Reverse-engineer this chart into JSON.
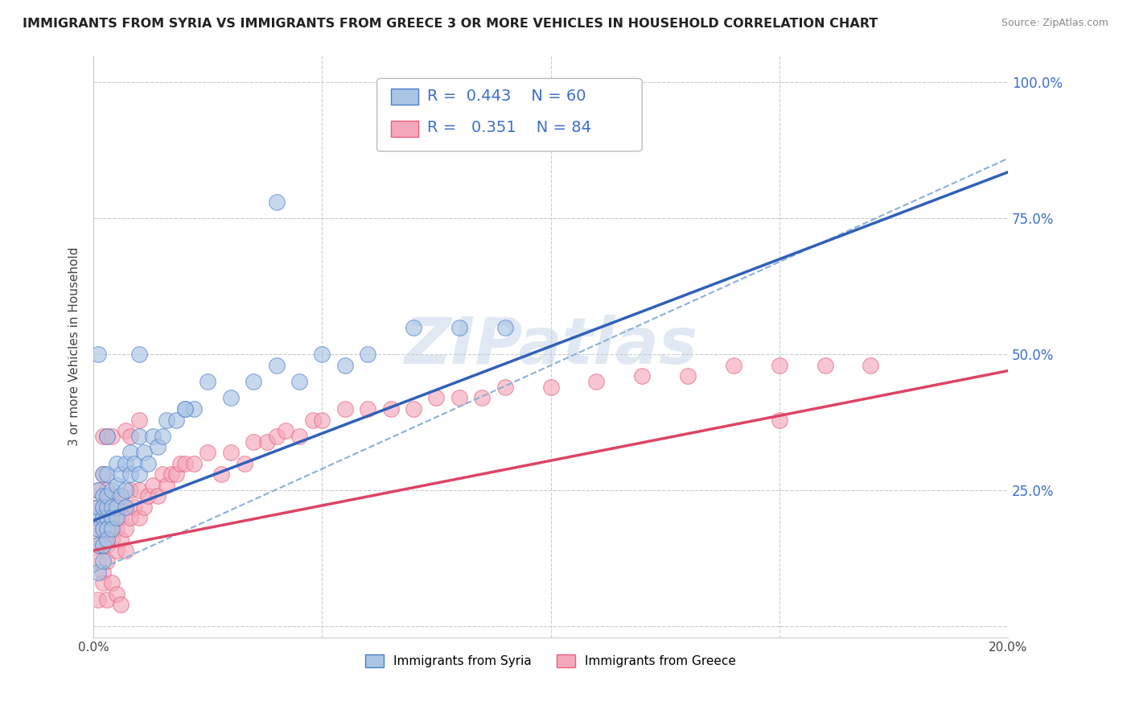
{
  "title": "IMMIGRANTS FROM SYRIA VS IMMIGRANTS FROM GREECE 3 OR MORE VEHICLES IN HOUSEHOLD CORRELATION CHART",
  "source": "Source: ZipAtlas.com",
  "ylabel": "3 or more Vehicles in Household",
  "xlim": [
    0.0,
    0.2
  ],
  "ylim": [
    -0.02,
    1.05
  ],
  "xticks": [
    0.0,
    0.05,
    0.1,
    0.15,
    0.2
  ],
  "xticklabels": [
    "0.0%",
    "",
    "",
    "",
    "20.0%"
  ],
  "yticks": [
    0.0,
    0.25,
    0.5,
    0.75,
    1.0
  ],
  "yticklabels_right": [
    "",
    "25.0%",
    "50.0%",
    "75.0%",
    "100.0%"
  ],
  "syria_color": "#aac4e4",
  "greece_color": "#f5a8bc",
  "syria_edge_color": "#4a7fcb",
  "greece_edge_color": "#e8607a",
  "syria_line_color": "#3060bb",
  "greece_line_color": "#dd4466",
  "diag_line_color": "#8ab0d8",
  "grid_color": "#cccccc",
  "R_syria": 0.443,
  "N_syria": 60,
  "R_greece": 0.351,
  "N_greece": 84,
  "watermark": "ZIPatlas",
  "legend_label_syria": "Immigrants from Syria",
  "legend_label_greece": "Immigrants from Greece",
  "syria_line_intercept": 0.195,
  "syria_line_slope": 3.2,
  "greece_line_intercept": 0.14,
  "greece_line_slope": 1.65,
  "diag_intercept": 0.1,
  "diag_slope": 3.8,
  "syria_x": [
    0.001,
    0.001,
    0.001,
    0.001,
    0.001,
    0.001,
    0.002,
    0.002,
    0.002,
    0.002,
    0.002,
    0.002,
    0.002,
    0.003,
    0.003,
    0.003,
    0.003,
    0.003,
    0.003,
    0.004,
    0.004,
    0.004,
    0.004,
    0.005,
    0.005,
    0.005,
    0.005,
    0.006,
    0.006,
    0.007,
    0.007,
    0.007,
    0.008,
    0.008,
    0.009,
    0.01,
    0.01,
    0.011,
    0.012,
    0.013,
    0.014,
    0.015,
    0.016,
    0.018,
    0.02,
    0.022,
    0.025,
    0.03,
    0.035,
    0.04,
    0.045,
    0.05,
    0.055,
    0.06,
    0.07,
    0.08,
    0.09,
    0.001,
    0.003,
    0.02
  ],
  "syria_y": [
    0.2,
    0.22,
    0.18,
    0.15,
    0.25,
    0.1,
    0.2,
    0.24,
    0.18,
    0.22,
    0.15,
    0.12,
    0.28,
    0.2,
    0.22,
    0.18,
    0.24,
    0.16,
    0.28,
    0.22,
    0.2,
    0.25,
    0.18,
    0.22,
    0.26,
    0.2,
    0.3,
    0.24,
    0.28,
    0.25,
    0.3,
    0.22,
    0.28,
    0.32,
    0.3,
    0.28,
    0.35,
    0.32,
    0.3,
    0.35,
    0.33,
    0.35,
    0.38,
    0.38,
    0.4,
    0.4,
    0.45,
    0.42,
    0.45,
    0.48,
    0.45,
    0.5,
    0.48,
    0.5,
    0.55,
    0.55,
    0.55,
    0.5,
    0.35,
    0.4
  ],
  "syria_outlier_x": [
    0.04
  ],
  "syria_outlier_y": [
    0.78
  ],
  "syria_outlier2_x": [
    0.01
  ],
  "syria_outlier2_y": [
    0.5
  ],
  "greece_x": [
    0.001,
    0.001,
    0.001,
    0.001,
    0.001,
    0.002,
    0.002,
    0.002,
    0.002,
    0.002,
    0.002,
    0.003,
    0.003,
    0.003,
    0.003,
    0.003,
    0.004,
    0.004,
    0.004,
    0.004,
    0.005,
    0.005,
    0.005,
    0.006,
    0.006,
    0.006,
    0.007,
    0.007,
    0.007,
    0.008,
    0.008,
    0.009,
    0.01,
    0.01,
    0.011,
    0.012,
    0.013,
    0.014,
    0.015,
    0.016,
    0.017,
    0.018,
    0.019,
    0.02,
    0.022,
    0.025,
    0.028,
    0.03,
    0.033,
    0.035,
    0.038,
    0.04,
    0.042,
    0.045,
    0.048,
    0.05,
    0.055,
    0.06,
    0.065,
    0.07,
    0.075,
    0.08,
    0.085,
    0.09,
    0.1,
    0.11,
    0.12,
    0.13,
    0.14,
    0.15,
    0.16,
    0.17,
    0.001,
    0.002,
    0.003,
    0.004,
    0.005,
    0.006,
    0.002,
    0.003,
    0.004,
    0.007,
    0.008,
    0.01
  ],
  "greece_y": [
    0.18,
    0.22,
    0.15,
    0.12,
    0.25,
    0.18,
    0.15,
    0.22,
    0.1,
    0.2,
    0.28,
    0.18,
    0.22,
    0.15,
    0.12,
    0.25,
    0.2,
    0.18,
    0.24,
    0.16,
    0.18,
    0.22,
    0.14,
    0.2,
    0.16,
    0.24,
    0.18,
    0.22,
    0.14,
    0.2,
    0.25,
    0.22,
    0.2,
    0.25,
    0.22,
    0.24,
    0.26,
    0.24,
    0.28,
    0.26,
    0.28,
    0.28,
    0.3,
    0.3,
    0.3,
    0.32,
    0.28,
    0.32,
    0.3,
    0.34,
    0.34,
    0.35,
    0.36,
    0.35,
    0.38,
    0.38,
    0.4,
    0.4,
    0.4,
    0.4,
    0.42,
    0.42,
    0.42,
    0.44,
    0.44,
    0.45,
    0.46,
    0.46,
    0.48,
    0.48,
    0.48,
    0.48,
    0.05,
    0.08,
    0.05,
    0.08,
    0.06,
    0.04,
    0.35,
    0.35,
    0.35,
    0.36,
    0.35,
    0.38
  ],
  "greece_outlier_x": [
    0.15
  ],
  "greece_outlier_y": [
    0.38
  ]
}
